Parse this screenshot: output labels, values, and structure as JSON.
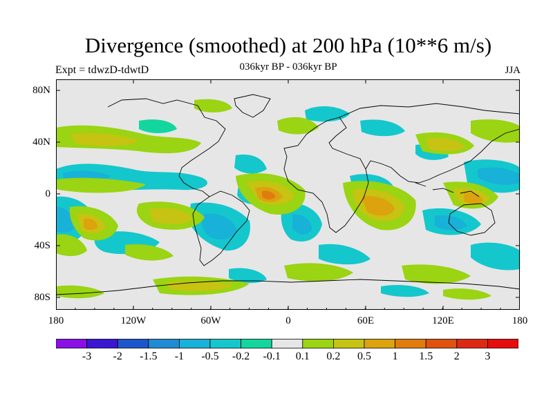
{
  "header": {
    "title": "Divergence (smoothed) at 200 hPa (10**6 m/s)",
    "subtitle": "036kyr BP - 036kyr BP",
    "left_string": "Expt = tdwzD-tdwtD",
    "right_string": "JJA"
  },
  "map": {
    "lat_labels": [
      "80N",
      "40N",
      "0",
      "40S",
      "80S"
    ],
    "lon_labels": [
      "180",
      "120W",
      "60W",
      "0",
      "60E",
      "120E",
      "180"
    ],
    "colors": {
      "land_background": "#e6e6e6",
      "coastline": "#000000"
    }
  },
  "colorbar": {
    "labels": [
      "-3",
      "-2",
      "-1.5",
      "-1",
      "-0.5",
      "-0.2",
      "-0.1",
      "0.1",
      "0.2",
      "0.5",
      "1",
      "1.5",
      "2",
      "3"
    ],
    "colors": [
      "#8a0ee6",
      "#3a15d2",
      "#1d55cc",
      "#1f8bd2",
      "#18b1d8",
      "#14c7cc",
      "#13d69e",
      "#e6e6e6",
      "#9ad412",
      "#c6c312",
      "#dca30e",
      "#e07c0e",
      "#e0520e",
      "#dc2a12",
      "#e60d0d"
    ]
  }
}
